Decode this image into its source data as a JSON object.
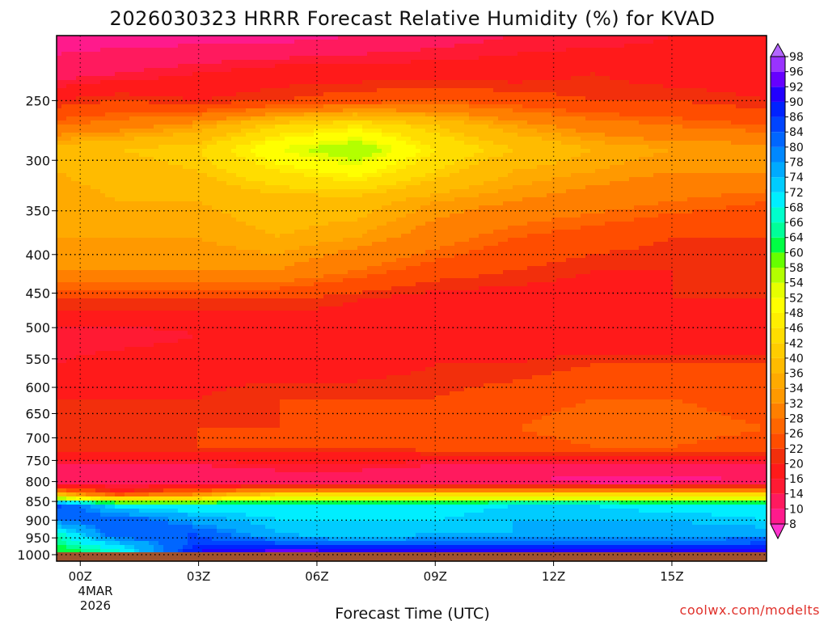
{
  "chart_data": {
    "type": "heatmap",
    "title": "2026030323 HRRR Forecast Relative Humidity (%) for KVAD",
    "xlabel": "Forecast Time (UTC)",
    "ylabel": "",
    "y_scale": "log-pressure",
    "y_ticks": [
      250,
      300,
      350,
      400,
      450,
      500,
      550,
      600,
      650,
      700,
      750,
      800,
      850,
      900,
      950,
      1000
    ],
    "y_tick_labels": [
      "250",
      "300",
      "350",
      "400",
      "450",
      "500",
      "550",
      "600",
      "650",
      "700",
      "750",
      "800",
      "850",
      "900",
      "950",
      "1000"
    ],
    "x_ticks": [
      0,
      3,
      6,
      9,
      12,
      15
    ],
    "x_tick_labels": [
      "00Z",
      "03Z",
      "06Z",
      "09Z",
      "12Z",
      "15Z"
    ],
    "date_label": [
      "4MAR",
      "2026"
    ],
    "x_range": [
      -0.6,
      17.4
    ],
    "y_range": [
      205,
      1020
    ],
    "grid": true,
    "colorbar": {
      "levels": [
        "8",
        "10",
        "14",
        "16",
        "20",
        "22",
        "26",
        "28",
        "32",
        "34",
        "36",
        "40",
        "42",
        "46",
        "48",
        "52",
        "54",
        "58",
        "60",
        "64",
        "66",
        "68",
        "72",
        "74",
        "78",
        "80",
        "84",
        "86",
        "90",
        "92",
        "96",
        "98"
      ],
      "colors": [
        "#ff33cc",
        "#ff1a8c",
        "#ff1a5e",
        "#ff1a33",
        "#ff1a1a",
        "#f22f0c",
        "#ff4d00",
        "#ff6600",
        "#ff7f00",
        "#ff9900",
        "#ffaa00",
        "#ffbb00",
        "#ffcc00",
        "#ffdd00",
        "#ffee00",
        "#ffff00",
        "#e6ff00",
        "#b3ff00",
        "#66ff00",
        "#00ff44",
        "#00ff99",
        "#00ffcc",
        "#00eeff",
        "#00ccff",
        "#00aaff",
        "#0088ff",
        "#0066ff",
        "#0044ff",
        "#0022ff",
        "#2200ff",
        "#6600ff",
        "#9933ff",
        "#b366ff"
      ]
    },
    "layers": [
      {
        "pressure": 205,
        "rh": [
          8,
          8,
          8,
          8,
          10,
          12,
          14,
          14,
          16,
          18
        ]
      },
      {
        "pressure": 230,
        "rh": [
          12,
          14,
          16,
          18,
          18,
          18,
          18,
          20,
          18,
          18
        ]
      },
      {
        "pressure": 250,
        "rh": [
          20,
          22,
          20,
          22,
          24,
          26,
          24,
          22,
          22,
          20
        ]
      },
      {
        "pressure": 270,
        "rh": [
          28,
          30,
          34,
          42,
          46,
          40,
          34,
          30,
          28,
          26
        ]
      },
      {
        "pressure": 290,
        "rh": [
          38,
          40,
          42,
          52,
          58,
          46,
          40,
          36,
          34,
          34
        ]
      },
      {
        "pressure": 310,
        "rh": [
          36,
          38,
          40,
          46,
          50,
          42,
          36,
          34,
          32,
          32
        ]
      },
      {
        "pressure": 340,
        "rh": [
          34,
          36,
          36,
          38,
          38,
          34,
          32,
          30,
          28,
          26
        ]
      },
      {
        "pressure": 380,
        "rh": [
          34,
          34,
          34,
          36,
          34,
          30,
          26,
          24,
          22,
          22
        ]
      },
      {
        "pressure": 420,
        "rh": [
          32,
          32,
          32,
          32,
          28,
          24,
          22,
          20,
          20,
          20
        ]
      },
      {
        "pressure": 460,
        "rh": [
          22,
          22,
          22,
          22,
          20,
          18,
          18,
          18,
          20,
          20
        ]
      },
      {
        "pressure": 510,
        "rh": [
          14,
          14,
          16,
          16,
          18,
          18,
          18,
          16,
          16,
          16
        ]
      },
      {
        "pressure": 560,
        "rh": [
          16,
          18,
          18,
          18,
          18,
          20,
          20,
          22,
          22,
          22
        ]
      },
      {
        "pressure": 620,
        "rh": [
          20,
          20,
          20,
          22,
          22,
          22,
          24,
          26,
          26,
          24
        ]
      },
      {
        "pressure": 680,
        "rh": [
          20,
          20,
          22,
          22,
          22,
          24,
          26,
          28,
          28,
          26
        ]
      },
      {
        "pressure": 720,
        "rh": [
          22,
          22,
          22,
          22,
          22,
          24,
          24,
          26,
          26,
          24
        ]
      },
      {
        "pressure": 760,
        "rh": [
          14,
          14,
          14,
          16,
          16,
          14,
          14,
          14,
          14,
          14
        ]
      },
      {
        "pressure": 800,
        "rh": [
          10,
          10,
          10,
          10,
          10,
          10,
          10,
          8,
          8,
          10
        ]
      },
      {
        "pressure": 830,
        "rh": [
          34,
          22,
          30,
          40,
          40,
          40,
          40,
          40,
          40,
          40
        ]
      },
      {
        "pressure": 860,
        "rh": [
          86,
          70,
          68,
          70,
          70,
          70,
          72,
          72,
          70,
          70
        ]
      },
      {
        "pressure": 900,
        "rh": [
          80,
          84,
          76,
          72,
          72,
          72,
          74,
          74,
          74,
          72
        ]
      },
      {
        "pressure": 940,
        "rh": [
          66,
          84,
          84,
          74,
          72,
          74,
          74,
          74,
          76,
          76
        ]
      },
      {
        "pressure": 970,
        "rh": [
          64,
          72,
          86,
          86,
          84,
          84,
          84,
          84,
          84,
          86
        ]
      },
      {
        "pressure": 1000,
        "rh": [
          60,
          66,
          92,
          96,
          96,
          96,
          96,
          96,
          96,
          94
        ]
      },
      {
        "pressure": 1020,
        "rh": [
          60,
          66,
          92,
          96,
          96,
          96,
          96,
          96,
          96,
          94
        ]
      }
    ],
    "layer_times": [
      -0.6,
      1,
      3,
      5,
      7,
      9,
      11,
      13,
      15,
      17.4
    ],
    "ground_color": "#a0522d"
  },
  "credit": "coolwx.com/modelts"
}
